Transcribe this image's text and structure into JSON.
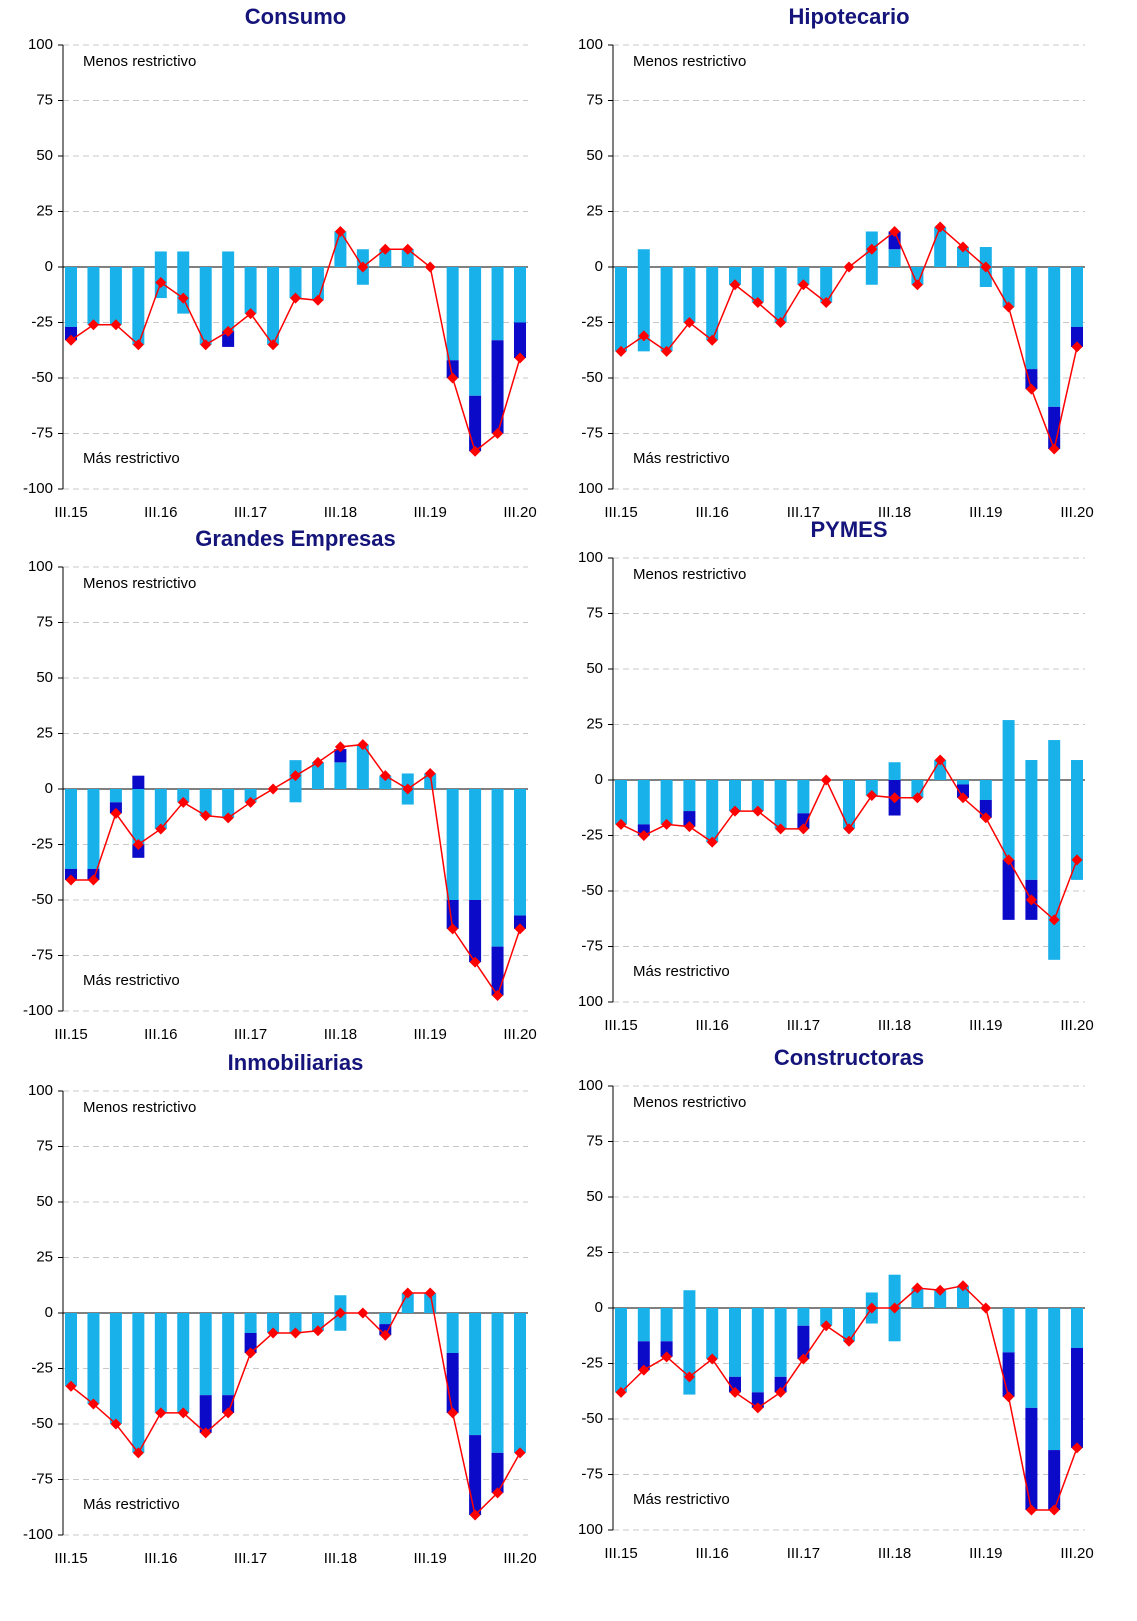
{
  "chart_data": [
    {
      "type": "combo",
      "title": "Consumo",
      "annotations": [
        "Menos restrictivo",
        "Más restrictivo"
      ],
      "categories": [
        "III.15",
        null,
        null,
        null,
        "III.16",
        null,
        null,
        null,
        "III.17",
        null,
        null,
        null,
        "III.18",
        null,
        null,
        null,
        "III.19",
        null,
        null,
        null,
        "III.20"
      ],
      "ylim": [
        -100,
        100
      ],
      "yticks": [
        -100,
        -75,
        -50,
        -25,
        0,
        25,
        50,
        75,
        100
      ],
      "grid": true,
      "series": [
        {
          "type": "bar",
          "color": "#19b1ea",
          "values": [
            0,
            0,
            0,
            0,
            7,
            7,
            0,
            7,
            0,
            0,
            0,
            0,
            16,
            8,
            8,
            8,
            0,
            0,
            0,
            0,
            0
          ]
        },
        {
          "type": "bar",
          "color": "#19b1ea",
          "values": [
            -27,
            -26,
            -26,
            -35,
            -14,
            -21,
            -35,
            -29,
            -21,
            -35,
            -14,
            -15,
            0,
            -8,
            0,
            0,
            0,
            -42,
            -58,
            -33,
            -25
          ]
        },
        {
          "type": "bar",
          "color": "#0a0ac8",
          "values": [
            -6,
            0,
            0,
            0,
            0,
            0,
            0,
            -7,
            0,
            0,
            0,
            0,
            0,
            0,
            0,
            0,
            0,
            -8,
            -25,
            -42,
            -16
          ]
        },
        {
          "type": "line",
          "color": "#ff0000",
          "values": [
            -33,
            -26,
            -26,
            -35,
            -7,
            -14,
            -35,
            -29,
            -21,
            -35,
            -14,
            -15,
            16,
            0,
            8,
            8,
            0,
            -50,
            -83,
            -75,
            -41
          ]
        }
      ]
    },
    {
      "type": "combo",
      "title": "Hipotecario",
      "annotations": [
        "Menos restrictivo",
        "Más restrictivo"
      ],
      "categories": [
        "III.15",
        null,
        null,
        null,
        "III.16",
        null,
        null,
        null,
        "III.17",
        null,
        null,
        null,
        "III.18",
        null,
        null,
        null,
        "III.19",
        null,
        null,
        null,
        "III.20"
      ],
      "ylim": [
        -100,
        100
      ],
      "yticks": [
        {
          "value": -100,
          "label": "100"
        },
        -75,
        -50,
        -25,
        0,
        25,
        50,
        75,
        100
      ],
      "grid": true,
      "series": [
        {
          "type": "bar",
          "color": "#19b1ea",
          "values": [
            0,
            8,
            0,
            0,
            0,
            0,
            0,
            0,
            0,
            0,
            0,
            16,
            8,
            0,
            18,
            9,
            9,
            0,
            0,
            0,
            0
          ]
        },
        {
          "type": "bar",
          "color": "#0a0ac8",
          "values": [
            0,
            0,
            0,
            0,
            0,
            0,
            0,
            0,
            0,
            0,
            0,
            0,
            8,
            0,
            0,
            0,
            0,
            0,
            0,
            0,
            0
          ]
        },
        {
          "type": "bar",
          "color": "#19b1ea",
          "values": [
            -38,
            -38,
            -38,
            -25,
            -33,
            -8,
            -16,
            -25,
            -8,
            -16,
            0,
            -8,
            0,
            -8,
            0,
            0,
            -9,
            -18,
            -46,
            -63,
            -27
          ]
        },
        {
          "type": "bar",
          "color": "#0a0ac8",
          "values": [
            0,
            0,
            0,
            0,
            0,
            0,
            0,
            0,
            0,
            0,
            0,
            0,
            0,
            0,
            0,
            0,
            0,
            0,
            -9,
            -19,
            -9
          ]
        },
        {
          "type": "line",
          "color": "#ff0000",
          "values": [
            -38,
            -31,
            -38,
            -25,
            -33,
            -8,
            -16,
            -25,
            -8,
            -16,
            0,
            8,
            16,
            -8,
            18,
            9,
            0,
            -18,
            -55,
            -82,
            -36
          ]
        }
      ]
    },
    {
      "type": "combo",
      "title": "Grandes Empresas",
      "annotations": [
        "Menos restrictivo",
        "Más restrictivo"
      ],
      "categories": [
        "III.15",
        null,
        null,
        null,
        "III.16",
        null,
        null,
        null,
        "III.17",
        null,
        null,
        null,
        "III.18",
        null,
        null,
        null,
        "III.19",
        null,
        null,
        null,
        "III.20"
      ],
      "ylim": [
        -100,
        100
      ],
      "yticks": [
        -100,
        -75,
        -50,
        -25,
        0,
        25,
        50,
        75,
        100
      ],
      "grid": true,
      "series": [
        {
          "type": "bar",
          "color": "#19b1ea",
          "values": [
            0,
            0,
            0,
            0,
            0,
            0,
            0,
            0,
            0,
            0,
            13,
            12,
            12,
            20,
            6,
            7,
            7,
            0,
            0,
            0,
            0
          ]
        },
        {
          "type": "bar",
          "color": "#0a0ac8",
          "values": [
            0,
            0,
            0,
            6,
            0,
            0,
            0,
            0,
            0,
            0,
            0,
            0,
            6,
            0,
            0,
            0,
            0,
            0,
            0,
            0,
            0
          ]
        },
        {
          "type": "bar",
          "color": "#19b1ea",
          "values": [
            -36,
            -36,
            -6,
            -25,
            -18,
            -6,
            -12,
            -13,
            -6,
            0,
            -6,
            0,
            0,
            0,
            0,
            -7,
            0,
            -50,
            -50,
            -71,
            -57
          ]
        },
        {
          "type": "bar",
          "color": "#0a0ac8",
          "values": [
            -5,
            -5,
            -5,
            -6,
            0,
            0,
            0,
            0,
            0,
            0,
            0,
            0,
            0,
            0,
            0,
            0,
            0,
            -13,
            -28,
            -22,
            -6
          ]
        },
        {
          "type": "line",
          "color": "#ff0000",
          "values": [
            -41,
            -41,
            -11,
            -25,
            -18,
            -6,
            -12,
            -13,
            -6,
            0,
            6,
            12,
            19,
            20,
            6,
            0,
            7,
            -63,
            -78,
            -93,
            -63
          ]
        }
      ]
    },
    {
      "type": "combo",
      "title": "PYMES",
      "annotations": [
        "Menos restrictivo",
        "Más restrictivo"
      ],
      "categories": [
        "III.15",
        null,
        null,
        null,
        "III.16",
        null,
        null,
        null,
        "III.17",
        null,
        null,
        null,
        "III.18",
        null,
        null,
        null,
        "III.19",
        null,
        null,
        null,
        "III.20"
      ],
      "ylim": [
        -100,
        100
      ],
      "yticks": [
        {
          "value": -100,
          "label": "100"
        },
        -75,
        -50,
        -25,
        0,
        25,
        50,
        75,
        100
      ],
      "grid": true,
      "series": [
        {
          "type": "bar",
          "color": "#19b1ea",
          "values": [
            0,
            0,
            0,
            0,
            0,
            0,
            0,
            0,
            0,
            0,
            0,
            0,
            8,
            0,
            9,
            0,
            0,
            27,
            9,
            18,
            9
          ]
        },
        {
          "type": "bar",
          "color": "#19b1ea",
          "values": [
            -20,
            -20,
            -20,
            -14,
            -28,
            -14,
            -14,
            -22,
            -15,
            0,
            -22,
            -7,
            0,
            -8,
            0,
            -2,
            -9,
            -36,
            -45,
            -81,
            -45
          ]
        },
        {
          "type": "bar",
          "color": "#0a0ac8",
          "values": [
            0,
            -5,
            0,
            -7,
            0,
            0,
            0,
            0,
            -7,
            0,
            0,
            0,
            -16,
            0,
            0,
            -6,
            -8,
            -27,
            -18,
            0,
            0
          ]
        },
        {
          "type": "line",
          "color": "#ff0000",
          "values": [
            -20,
            -25,
            -20,
            -21,
            -28,
            -14,
            -14,
            -22,
            -22,
            0,
            -22,
            -7,
            -8,
            -8,
            9,
            -8,
            -17,
            -36,
            -54,
            -63,
            -36
          ]
        }
      ]
    },
    {
      "type": "combo",
      "title": "Inmobiliarias",
      "annotations": [
        "Menos restrictivo",
        "Más restrictivo"
      ],
      "categories": [
        "III.15",
        null,
        null,
        null,
        "III.16",
        null,
        null,
        null,
        "III.17",
        null,
        null,
        null,
        "III.18",
        null,
        null,
        null,
        "III.19",
        null,
        null,
        null,
        "III.20"
      ],
      "ylim": [
        -100,
        100
      ],
      "yticks": [
        -100,
        -75,
        -50,
        -25,
        0,
        25,
        50,
        75,
        100
      ],
      "grid": true,
      "series": [
        {
          "type": "bar",
          "color": "#19b1ea",
          "values": [
            0,
            0,
            0,
            0,
            0,
            0,
            0,
            0,
            0,
            0,
            0,
            0,
            8,
            0,
            0,
            9,
            9,
            0,
            0,
            0,
            0
          ]
        },
        {
          "type": "bar",
          "color": "#19b1ea",
          "values": [
            -33,
            -41,
            -50,
            -63,
            -45,
            -45,
            -37,
            -37,
            -9,
            -9,
            -9,
            -8,
            -8,
            0,
            -5,
            0,
            0,
            -18,
            -55,
            -63,
            -63
          ]
        },
        {
          "type": "bar",
          "color": "#0a0ac8",
          "values": [
            0,
            0,
            0,
            0,
            0,
            0,
            -17,
            -8,
            -9,
            0,
            0,
            0,
            0,
            0,
            -5,
            0,
            0,
            -27,
            -36,
            -18,
            0
          ]
        },
        {
          "type": "line",
          "color": "#ff0000",
          "values": [
            -33,
            -41,
            -50,
            -63,
            -45,
            -45,
            -54,
            -45,
            -18,
            -9,
            -9,
            -8,
            0,
            0,
            -10,
            9,
            9,
            -45,
            -91,
            -81,
            -63
          ]
        }
      ]
    },
    {
      "type": "combo",
      "title": "Constructoras",
      "annotations": [
        "Menos restrictivo",
        "Más restrictivo"
      ],
      "categories": [
        "III.15",
        null,
        null,
        null,
        "III.16",
        null,
        null,
        null,
        "III.17",
        null,
        null,
        null,
        "III.18",
        null,
        null,
        null,
        "III.19",
        null,
        null,
        null,
        "III.20"
      ],
      "ylim": [
        -100,
        100
      ],
      "yticks": [
        {
          "value": -100,
          "label": "100"
        },
        -75,
        -50,
        -25,
        0,
        25,
        50,
        75,
        100
      ],
      "grid": true,
      "series": [
        {
          "type": "bar",
          "color": "#19b1ea",
          "values": [
            0,
            0,
            0,
            8,
            0,
            0,
            0,
            0,
            0,
            0,
            0,
            7,
            15,
            9,
            8,
            10,
            0,
            0,
            0,
            0,
            0
          ]
        },
        {
          "type": "bar",
          "color": "#19b1ea",
          "values": [
            -38,
            -15,
            -15,
            -39,
            -23,
            -31,
            -38,
            -31,
            -8,
            -8,
            -15,
            -7,
            -15,
            0,
            0,
            0,
            0,
            -20,
            -45,
            -64,
            -18
          ]
        },
        {
          "type": "bar",
          "color": "#0a0ac8",
          "values": [
            0,
            -13,
            -7,
            0,
            0,
            -7,
            -7,
            -7,
            -15,
            0,
            0,
            0,
            0,
            0,
            0,
            0,
            0,
            -20,
            -46,
            -27,
            -45
          ]
        },
        {
          "type": "line",
          "color": "#ff0000",
          "values": [
            -38,
            -28,
            -22,
            -31,
            -23,
            -38,
            -45,
            -38,
            -23,
            -8,
            -15,
            0,
            0,
            9,
            8,
            10,
            0,
            -40,
            -91,
            -91,
            -63
          ]
        }
      ]
    }
  ]
}
